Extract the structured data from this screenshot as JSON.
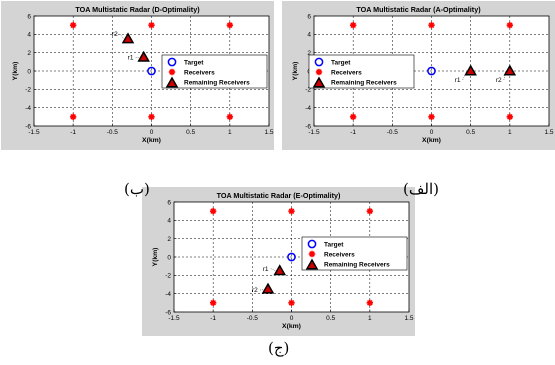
{
  "panels": [
    {
      "caption": "(ب)",
      "chart_data": {
        "type": "scatter",
        "title": "TOA Multistatic Radar (D-Optimality)",
        "xlabel": "X(km)",
        "ylabel": "Y(km)",
        "xlim": [
          -1.5,
          1.5
        ],
        "ylim": [
          -6,
          6
        ],
        "xticks": [
          "-1.5",
          "-1",
          "-0.5",
          "0",
          "0.5",
          "1",
          "1.5"
        ],
        "yticks": [
          "-6",
          "-4",
          "-2",
          "0",
          "2",
          "4",
          "6"
        ],
        "grid": true,
        "legend_position": "right",
        "series": [
          {
            "name": "Target",
            "marker": "circle",
            "color": "#0000ff",
            "points": [
              [
                0,
                0
              ]
            ]
          },
          {
            "name": "Receivers",
            "marker": "asterisk",
            "color": "#ff0000",
            "points": [
              [
                -1,
                5
              ],
              [
                0,
                5
              ],
              [
                1,
                5
              ],
              [
                -1,
                -5
              ],
              [
                0,
                -5
              ],
              [
                1,
                -5
              ]
            ]
          },
          {
            "name": "Remaining Receivers",
            "marker": "triangle",
            "color": "#000000",
            "points": [
              [
                -0.3,
                3.5
              ],
              [
                -0.1,
                1.5
              ]
            ]
          }
        ],
        "annotations": [
          {
            "text": "r2",
            "x": -0.3,
            "y": 3.5
          },
          {
            "text": "r1",
            "x": -0.1,
            "y": 1.5
          }
        ]
      }
    },
    {
      "caption": "(الف)",
      "chart_data": {
        "type": "scatter",
        "title": "TOA Multistatic Radar (A-Optimality)",
        "xlabel": "X(km)",
        "ylabel": "Y(km)",
        "xlim": [
          -1.5,
          1.5
        ],
        "ylim": [
          -6,
          6
        ],
        "xticks": [
          "-1.5",
          "-1",
          "-0.5",
          "0",
          "0.5",
          "1",
          "1.5"
        ],
        "yticks": [
          "-6",
          "-4",
          "-2",
          "0",
          "2",
          "4",
          "6"
        ],
        "grid": true,
        "legend_position": "left",
        "series": [
          {
            "name": "Target",
            "marker": "circle",
            "color": "#0000ff",
            "points": [
              [
                0,
                0
              ]
            ]
          },
          {
            "name": "Receivers",
            "marker": "asterisk",
            "color": "#ff0000",
            "points": [
              [
                -1,
                5
              ],
              [
                0,
                5
              ],
              [
                1,
                5
              ],
              [
                -1,
                -5
              ],
              [
                0,
                -5
              ],
              [
                1,
                -5
              ]
            ]
          },
          {
            "name": "Remaining Receivers",
            "marker": "triangle",
            "color": "#000000",
            "points": [
              [
                0.5,
                0
              ],
              [
                1,
                0
              ]
            ]
          }
        ],
        "annotations": [
          {
            "text": "r1",
            "x": 0.5,
            "y": 0
          },
          {
            "text": "r2",
            "x": 1,
            "y": 0
          }
        ]
      }
    },
    {
      "caption": "(ج)",
      "chart_data": {
        "type": "scatter",
        "title": "TOA Multistatic Radar (E-Optimality)",
        "xlabel": "X(km)",
        "ylabel": "Y(km)",
        "xlim": [
          -1.5,
          1.5
        ],
        "ylim": [
          -6,
          6
        ],
        "xticks": [
          "-1.5",
          "-1",
          "-0.5",
          "0",
          "0.5",
          "1",
          "1.5"
        ],
        "yticks": [
          "-6",
          "-4",
          "-2",
          "0",
          "2",
          "4",
          "6"
        ],
        "grid": true,
        "legend_position": "right",
        "series": [
          {
            "name": "Target",
            "marker": "circle",
            "color": "#0000ff",
            "points": [
              [
                0,
                0
              ]
            ]
          },
          {
            "name": "Receivers",
            "marker": "asterisk",
            "color": "#ff0000",
            "points": [
              [
                -1,
                5
              ],
              [
                0,
                5
              ],
              [
                1,
                5
              ],
              [
                -1,
                -5
              ],
              [
                0,
                -5
              ],
              [
                1,
                -5
              ]
            ]
          },
          {
            "name": "Remaining Receivers",
            "marker": "triangle",
            "color": "#000000",
            "points": [
              [
                -0.15,
                -1.5
              ],
              [
                -0.3,
                -3.5
              ]
            ]
          }
        ],
        "annotations": [
          {
            "text": "r1",
            "x": -0.15,
            "y": -1.5
          },
          {
            "text": "r2",
            "x": -0.3,
            "y": -3.5
          }
        ]
      }
    }
  ]
}
